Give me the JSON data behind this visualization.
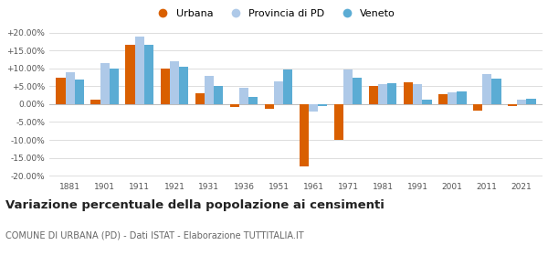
{
  "years": [
    1881,
    1901,
    1911,
    1921,
    1931,
    1936,
    1951,
    1961,
    1971,
    1981,
    1991,
    2001,
    2011,
    2021
  ],
  "urbana": [
    7.5,
    1.2,
    16.5,
    10.0,
    3.0,
    -0.8,
    -1.2,
    -17.5,
    -10.0,
    5.0,
    6.2,
    2.8,
    -1.8,
    -0.5
  ],
  "provincia_pd": [
    9.0,
    11.5,
    19.0,
    12.0,
    8.0,
    4.5,
    6.5,
    -2.0,
    9.8,
    5.5,
    5.5,
    3.2,
    8.5,
    1.2
  ],
  "veneto": [
    6.8,
    10.0,
    16.5,
    10.5,
    5.0,
    2.0,
    9.8,
    -0.5,
    7.3,
    5.8,
    1.2,
    3.5,
    7.2,
    1.5
  ],
  "bar_width": 0.27,
  "color_urbana": "#d95f00",
  "color_provincia": "#aec9e8",
  "color_veneto": "#5bacd4",
  "bg_color": "#ffffff",
  "grid_color": "#d8d8d8",
  "ylim": [
    -21,
    22
  ],
  "yticks": [
    -20,
    -15,
    -10,
    -5,
    0,
    5,
    10,
    15,
    20
  ],
  "title": "Variazione percentuale della popolazione ai censimenti",
  "subtitle": "COMUNE DI URBANA (PD) - Dati ISTAT - Elaborazione TUTTITALIA.IT",
  "legend_labels": [
    "Urbana",
    "Provincia di PD",
    "Veneto"
  ]
}
